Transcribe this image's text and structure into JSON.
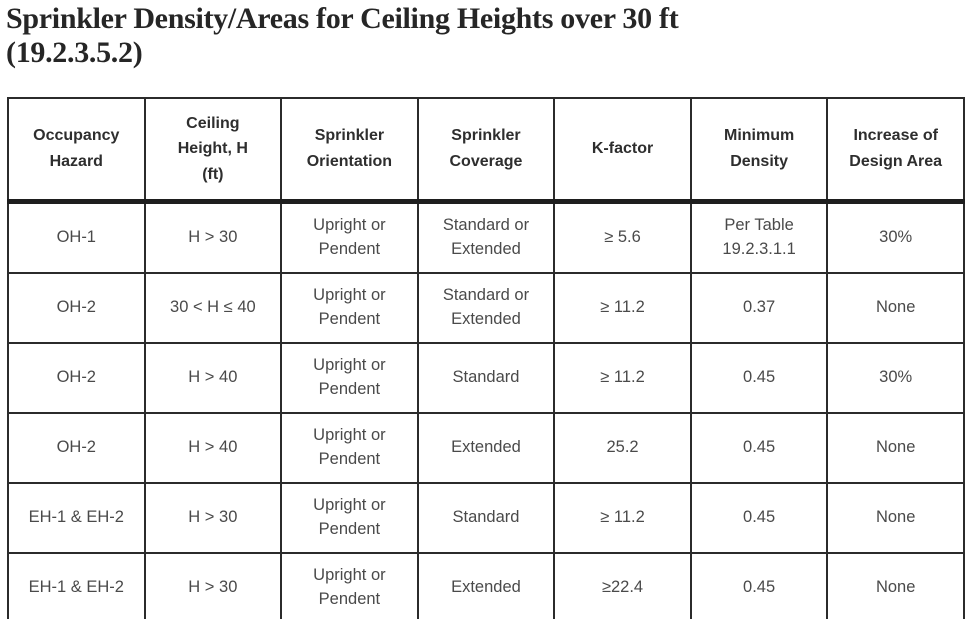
{
  "page": {
    "title_line1": "Sprinkler Density/Areas for Ceiling Heights over 30 ft",
    "title_line2": "(19.2.3.5.2)"
  },
  "table": {
    "headers": [
      "Occupancy\nHazard",
      "Ceiling\nHeight, H\n(ft)",
      "Sprinkler\nOrientation",
      "Sprinkler\nCoverage",
      "K-factor",
      "Minimum\nDensity",
      "Increase of\nDesign Area"
    ],
    "rows": [
      [
        "OH-1",
        "H > 30",
        "Upright or\nPendent",
        "Standard or\nExtended",
        "≥ 5.6",
        "Per Table\n19.2.3.1.1",
        "30%"
      ],
      [
        "OH-2",
        "30 < H ≤ 40",
        "Upright or\nPendent",
        "Standard or\nExtended",
        "≥ 11.2",
        "0.37",
        "None"
      ],
      [
        "OH-2",
        "H > 40",
        "Upright or\nPendent",
        "Standard",
        "≥ 11.2",
        "0.45",
        "30%"
      ],
      [
        "OH-2",
        "H > 40",
        "Upright or\nPendent",
        "Extended",
        "25.2",
        "0.45",
        "None"
      ],
      [
        "EH-1 & EH-2",
        "H > 30",
        "Upright or\nPendent",
        "Standard",
        "≥ 11.2",
        "0.45",
        "None"
      ],
      [
        "EH-1 & EH-2",
        "H > 30",
        "Upright or\nPendent",
        "Extended",
        "≥22.4",
        "0.45",
        "None"
      ]
    ]
  },
  "colors": {
    "title_text": "#262626",
    "header_text": "#2e2e2e",
    "body_text": "#4a4a4a",
    "border": "#2b2b2b",
    "header_rule": "#1e1e1e",
    "background": "#ffffff"
  }
}
